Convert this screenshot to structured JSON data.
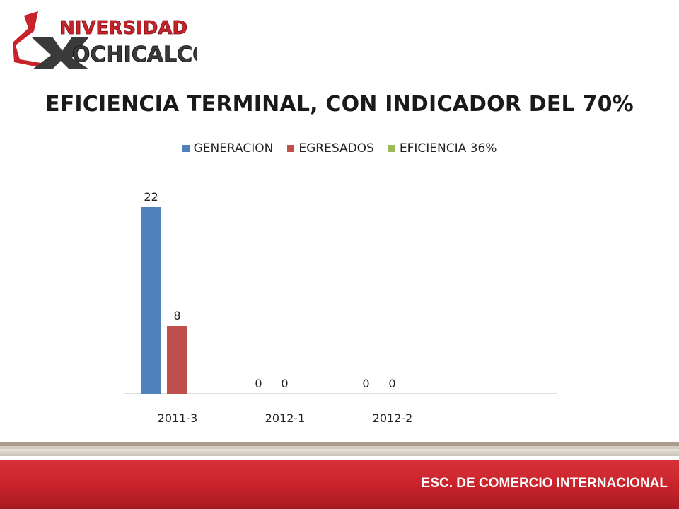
{
  "logo": {
    "line1": "NIVERSIDAD",
    "line2": "OCHICALCO"
  },
  "footer": {
    "school": "ESC. DE COMERCIO INTERNACIONAL"
  },
  "colors": {
    "generacion": "#4f81bd",
    "egresados": "#c0504d",
    "eficiencia": "#9bbb59",
    "footer_red": "#c8232b"
  },
  "chart_data": {
    "type": "bar",
    "title": "EFICIENCIA TERMINAL, CON INDICADOR DEL 70%",
    "categories": [
      "2011-3",
      "2012-1",
      "2012-2"
    ],
    "series": [
      {
        "name": "GENERACION",
        "values": [
          22,
          0,
          0
        ]
      },
      {
        "name": "EGRESADOS",
        "values": [
          8,
          0,
          0
        ]
      },
      {
        "name": "EFICIENCIA 36%",
        "values": [
          null,
          null,
          null
        ]
      }
    ],
    "data_labels": true,
    "legend": "top",
    "grid": false,
    "ylim": [
      0,
      25
    ]
  }
}
